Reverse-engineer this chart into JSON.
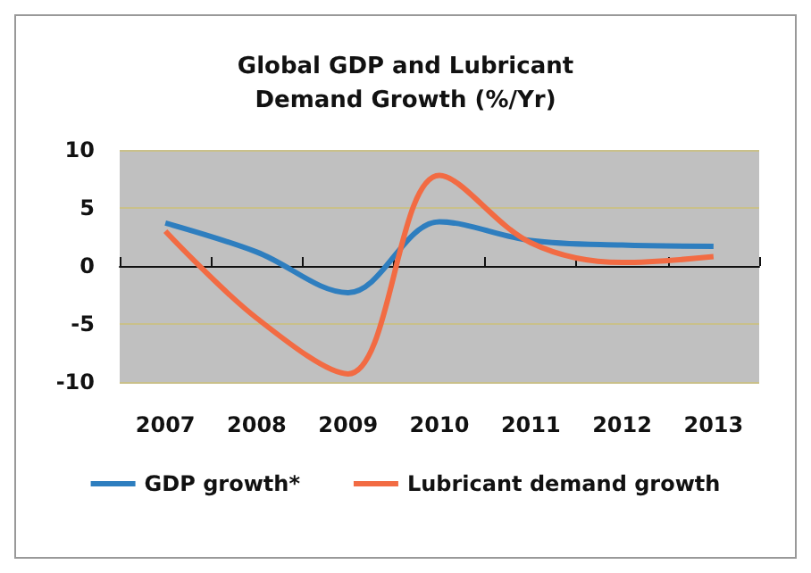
{
  "chart_data": {
    "type": "line",
    "title": "Global GDP and Lubricant\nDemand Growth (%/Yr)",
    "categories": [
      "2007",
      "2008",
      "2009",
      "2010",
      "2011",
      "2012",
      "2013"
    ],
    "series": [
      {
        "name": "GDP growth*",
        "color": "#2e7ebf",
        "values": [
          3.7,
          1.2,
          -2.3,
          3.8,
          2.2,
          1.8,
          1.7
        ]
      },
      {
        "name": "Lubricant demand growth",
        "color": "#f26b43",
        "values": [
          3.0,
          -4.5,
          -9.3,
          7.8,
          2.0,
          0.3,
          0.8
        ]
      }
    ],
    "ylim": [
      -10,
      10
    ],
    "yticks": [
      -10,
      -5,
      0,
      5,
      10
    ],
    "grid": "y",
    "legend": "bottom",
    "marker": "none"
  }
}
